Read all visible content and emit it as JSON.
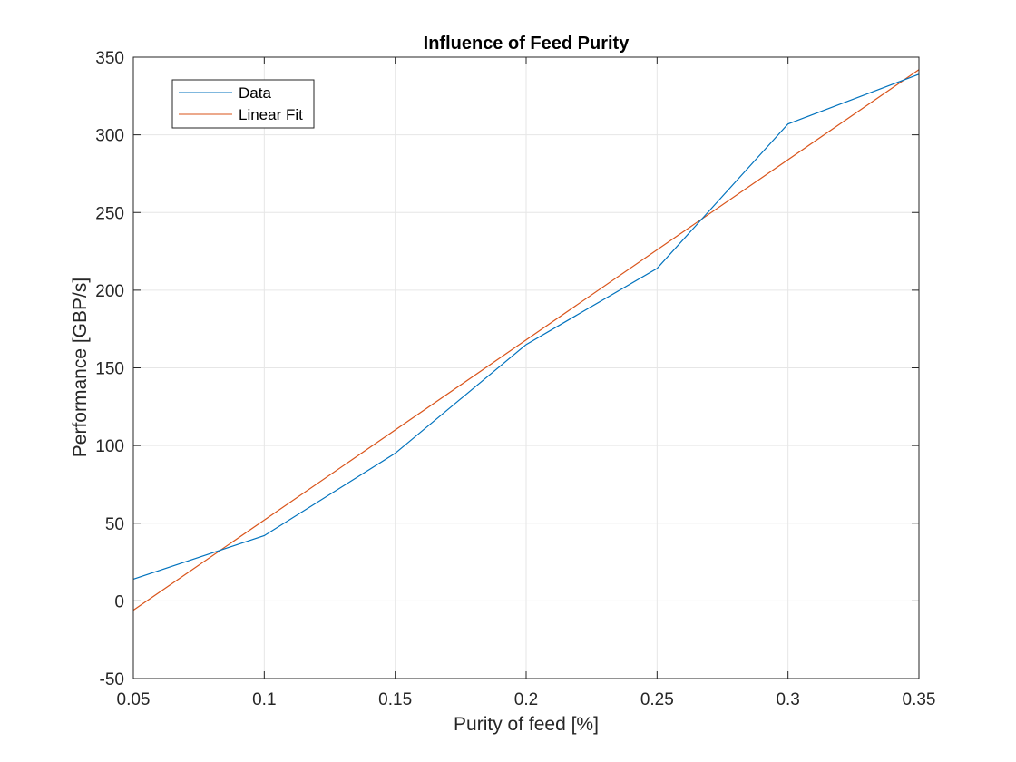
{
  "chart_data": {
    "type": "line",
    "title": "Influence of Feed Purity",
    "xlabel": "Purity of feed [%]",
    "ylabel": "Performance [GBP/s]",
    "xlim": [
      0.05,
      0.35
    ],
    "ylim": [
      -50,
      350
    ],
    "xticks": [
      0.05,
      0.1,
      0.15,
      0.2,
      0.25,
      0.3,
      0.35
    ],
    "xtick_labels": [
      "0.05",
      "0.1",
      "0.15",
      "0.2",
      "0.25",
      "0.3",
      "0.35"
    ],
    "yticks": [
      -50,
      0,
      50,
      100,
      150,
      200,
      250,
      300,
      350
    ],
    "ytick_labels": [
      "-50",
      "0",
      "50",
      "100",
      "150",
      "200",
      "250",
      "300",
      "350"
    ],
    "grid": true,
    "legend_position": "top-left",
    "series": [
      {
        "name": "Data",
        "color": "#0072BD",
        "x": [
          0.05,
          0.1,
          0.15,
          0.2,
          0.25,
          0.3,
          0.35
        ],
        "y": [
          14,
          42,
          95,
          165,
          214,
          307,
          339
        ]
      },
      {
        "name": "Linear Fit",
        "color": "#D95319",
        "x": [
          0.05,
          0.35
        ],
        "y": [
          -6,
          342
        ]
      }
    ]
  }
}
